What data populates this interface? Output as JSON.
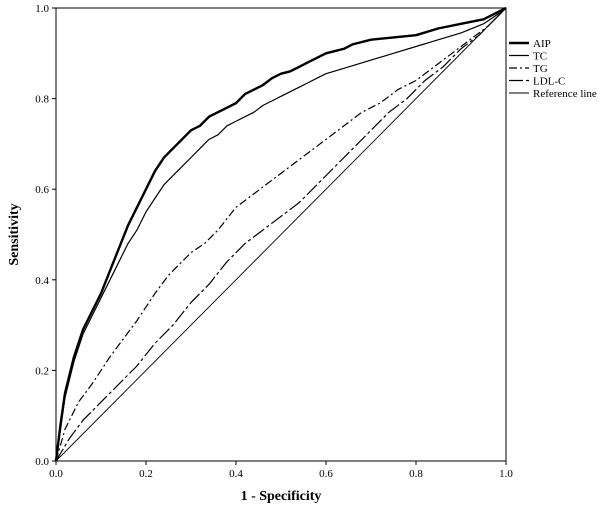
{
  "chart_data": {
    "type": "line",
    "title": "",
    "xlabel": "1 - Specificity",
    "ylabel": "Sensitivity",
    "xlim": [
      0,
      1
    ],
    "ylim": [
      0,
      1
    ],
    "xticks": [
      "0.0",
      "0.2",
      "0.4",
      "0.6",
      "0.8",
      "1.0"
    ],
    "yticks": [
      "0.0",
      "0.2",
      "0.4",
      "0.6",
      "0.8",
      "1.0"
    ],
    "grid": false,
    "legend_position": "right",
    "series": [
      {
        "name": "AIP",
        "color": "#000000",
        "style": "solid-bold",
        "x": [
          0,
          0.01,
          0.02,
          0.04,
          0.06,
          0.08,
          0.1,
          0.12,
          0.14,
          0.16,
          0.18,
          0.2,
          0.22,
          0.24,
          0.26,
          0.28,
          0.3,
          0.32,
          0.34,
          0.36,
          0.38,
          0.4,
          0.42,
          0.44,
          0.46,
          0.48,
          0.5,
          0.52,
          0.54,
          0.56,
          0.58,
          0.6,
          0.62,
          0.64,
          0.66,
          0.7,
          0.75,
          0.8,
          0.85,
          0.9,
          0.95,
          0.98,
          1.0
        ],
        "y": [
          0,
          0.08,
          0.15,
          0.23,
          0.29,
          0.33,
          0.37,
          0.42,
          0.47,
          0.52,
          0.56,
          0.6,
          0.64,
          0.67,
          0.69,
          0.71,
          0.73,
          0.74,
          0.76,
          0.77,
          0.78,
          0.79,
          0.81,
          0.82,
          0.83,
          0.845,
          0.855,
          0.86,
          0.87,
          0.88,
          0.89,
          0.9,
          0.905,
          0.91,
          0.92,
          0.93,
          0.935,
          0.94,
          0.955,
          0.965,
          0.975,
          0.99,
          1.0
        ]
      },
      {
        "name": "TC",
        "color": "#000000",
        "style": "solid",
        "x": [
          0,
          0.01,
          0.02,
          0.04,
          0.06,
          0.08,
          0.1,
          0.12,
          0.14,
          0.16,
          0.18,
          0.2,
          0.22,
          0.24,
          0.26,
          0.28,
          0.3,
          0.32,
          0.34,
          0.36,
          0.38,
          0.4,
          0.42,
          0.44,
          0.46,
          0.48,
          0.5,
          0.52,
          0.54,
          0.56,
          0.58,
          0.6,
          0.65,
          0.7,
          0.75,
          0.8,
          0.85,
          0.9,
          0.95,
          0.98,
          1.0
        ],
        "y": [
          0,
          0.07,
          0.14,
          0.22,
          0.28,
          0.32,
          0.36,
          0.4,
          0.44,
          0.48,
          0.51,
          0.55,
          0.58,
          0.61,
          0.63,
          0.65,
          0.67,
          0.69,
          0.71,
          0.72,
          0.74,
          0.75,
          0.76,
          0.77,
          0.785,
          0.795,
          0.805,
          0.815,
          0.825,
          0.835,
          0.845,
          0.855,
          0.87,
          0.885,
          0.9,
          0.915,
          0.93,
          0.945,
          0.965,
          0.985,
          1.0
        ]
      },
      {
        "name": "TG",
        "color": "#000000",
        "style": "dash-dot",
        "x": [
          0,
          0.02,
          0.05,
          0.08,
          0.1,
          0.12,
          0.15,
          0.18,
          0.2,
          0.22,
          0.25,
          0.28,
          0.3,
          0.33,
          0.36,
          0.4,
          0.44,
          0.48,
          0.52,
          0.56,
          0.6,
          0.64,
          0.68,
          0.72,
          0.76,
          0.8,
          0.84,
          0.88,
          0.92,
          0.96,
          1.0
        ],
        "y": [
          0,
          0.07,
          0.13,
          0.17,
          0.2,
          0.23,
          0.27,
          0.31,
          0.34,
          0.37,
          0.41,
          0.44,
          0.46,
          0.48,
          0.51,
          0.56,
          0.59,
          0.62,
          0.65,
          0.68,
          0.71,
          0.74,
          0.77,
          0.79,
          0.82,
          0.84,
          0.87,
          0.9,
          0.93,
          0.96,
          1.0
        ]
      },
      {
        "name": "LDL-C",
        "color": "#000000",
        "style": "long-dash-dot",
        "x": [
          0,
          0.03,
          0.06,
          0.1,
          0.14,
          0.18,
          0.22,
          0.26,
          0.3,
          0.34,
          0.38,
          0.42,
          0.46,
          0.5,
          0.54,
          0.58,
          0.62,
          0.66,
          0.7,
          0.74,
          0.78,
          0.82,
          0.86,
          0.9,
          0.94,
          0.97,
          1.0
        ],
        "y": [
          0,
          0.05,
          0.09,
          0.13,
          0.17,
          0.21,
          0.26,
          0.3,
          0.35,
          0.39,
          0.44,
          0.48,
          0.51,
          0.54,
          0.57,
          0.61,
          0.65,
          0.69,
          0.73,
          0.77,
          0.8,
          0.84,
          0.87,
          0.91,
          0.94,
          0.97,
          1.0
        ]
      },
      {
        "name": "Reference line",
        "color": "#000000",
        "style": "thin",
        "x": [
          0,
          1
        ],
        "y": [
          0,
          1
        ]
      }
    ]
  }
}
